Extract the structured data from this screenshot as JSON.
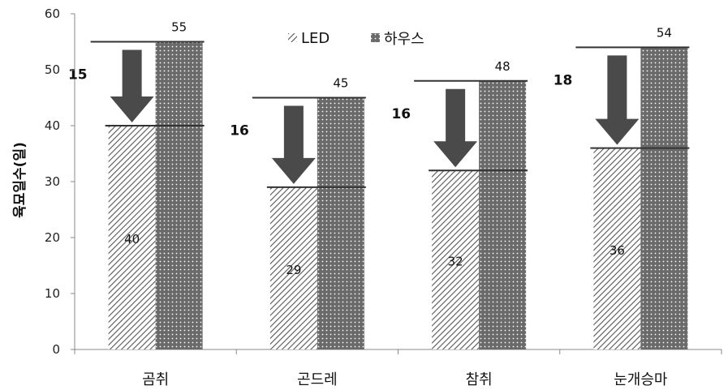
{
  "chart_data": {
    "type": "bar",
    "categories": [
      "곰취",
      "곤드레",
      "참취",
      "눈개승마"
    ],
    "series": [
      {
        "name": "LED",
        "values": [
          40,
          29,
          32,
          36
        ],
        "pattern": "diagonal-hatch",
        "color": "#555555"
      },
      {
        "name": "하우스",
        "values": [
          55,
          45,
          48,
          54
        ],
        "pattern": "dots",
        "color": "#6a6a6a"
      }
    ],
    "differences": [
      15,
      16,
      16,
      18
    ],
    "ylabel": "육묘일수(일)",
    "xlabel": "",
    "ylim": [
      0,
      60
    ],
    "yticks": [
      0,
      10,
      20,
      30,
      40,
      50,
      60
    ],
    "legend_position": "top-center",
    "grid": false,
    "arrow_color": "#4a4a4a"
  }
}
